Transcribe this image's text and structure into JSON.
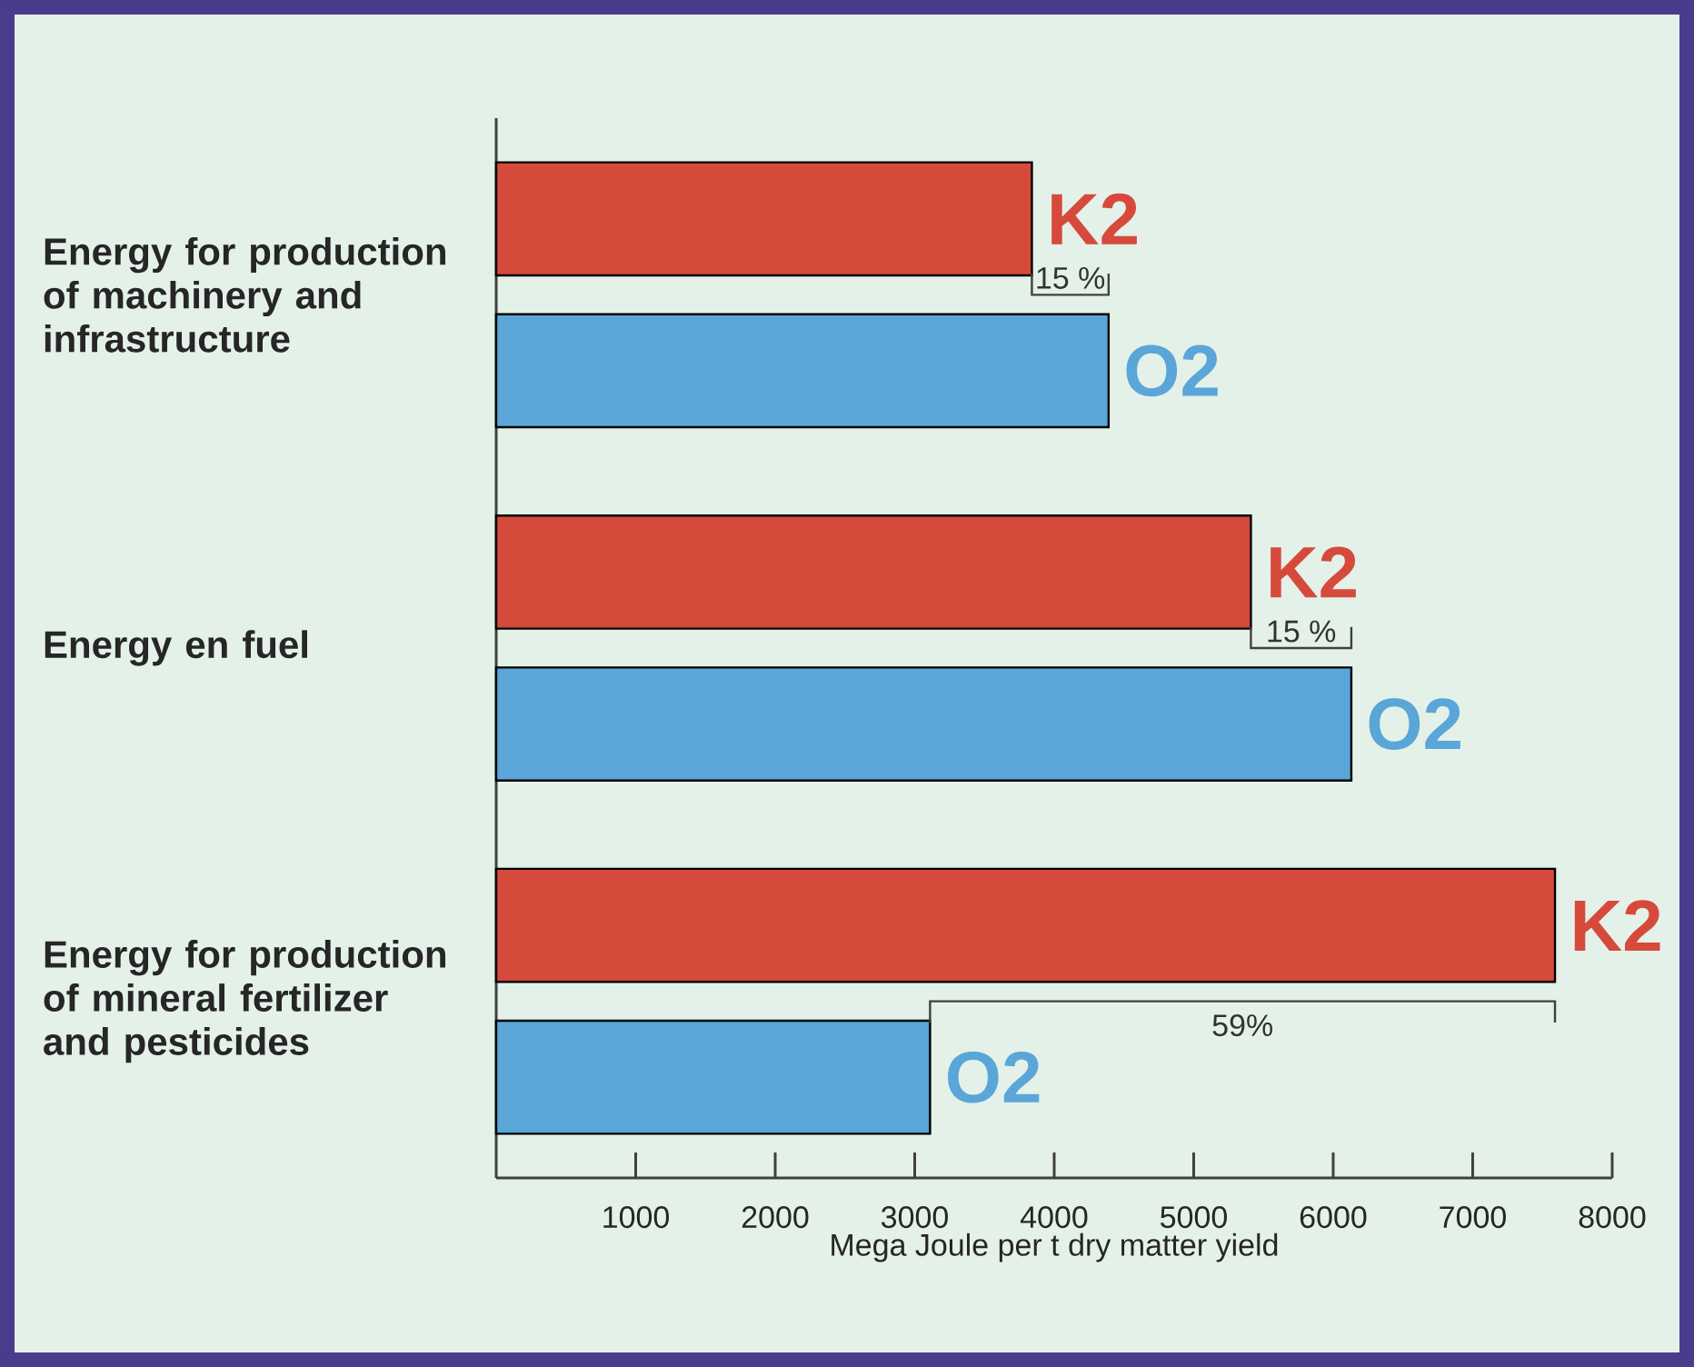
{
  "chart_data": {
    "type": "bar",
    "orientation": "horizontal",
    "categories": [
      "Energy for production of machinery and infrastructure",
      "Energy en fuel",
      "Energy for production of mineral fertilizer and pesticides"
    ],
    "series": [
      {
        "name": "K2",
        "color": "#d64a3c",
        "values": [
          3840,
          5410,
          7590
        ]
      },
      {
        "name": "O2",
        "color": "#5aa6d8",
        "values": [
          4390,
          6130,
          3110
        ]
      }
    ],
    "xlabel": "Mega Joule per t dry matter yield",
    "xlim": [
      0,
      8000
    ],
    "xticks": [
      1000,
      2000,
      3000,
      4000,
      5000,
      6000,
      7000,
      8000
    ],
    "annotations": [
      "15 %",
      "15 %",
      "59%"
    ]
  }
}
